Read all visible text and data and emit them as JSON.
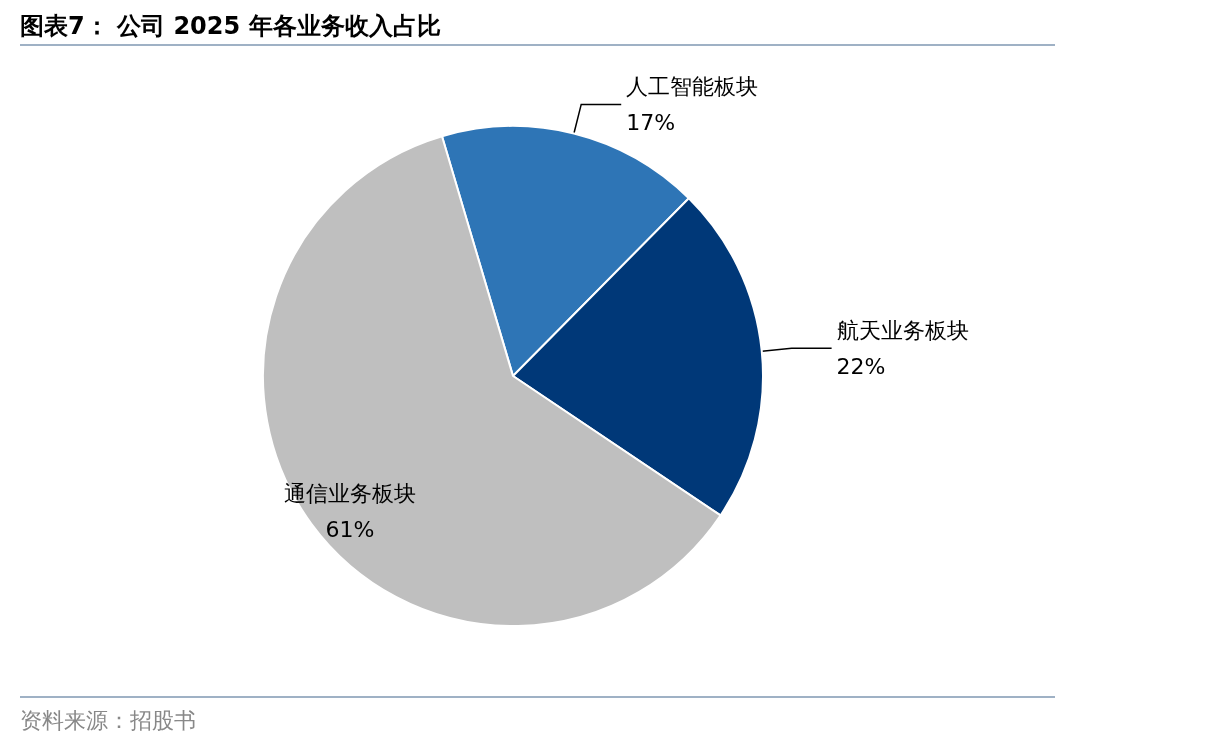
{
  "chart_data": {
    "type": "pie",
    "title": "图表7： 公司 2025 年各业务收入占比",
    "categories": [
      "人工智能板块",
      "航天业务板块",
      "通信业务板块"
    ],
    "values": [
      17,
      22,
      61
    ],
    "colors": [
      "#2e75b6",
      "#003878",
      "#bfbfbf"
    ],
    "value_labels": [
      "17%",
      "22%",
      "61%"
    ],
    "annotations": [
      "资料来源：招股书"
    ],
    "legend": false
  }
}
